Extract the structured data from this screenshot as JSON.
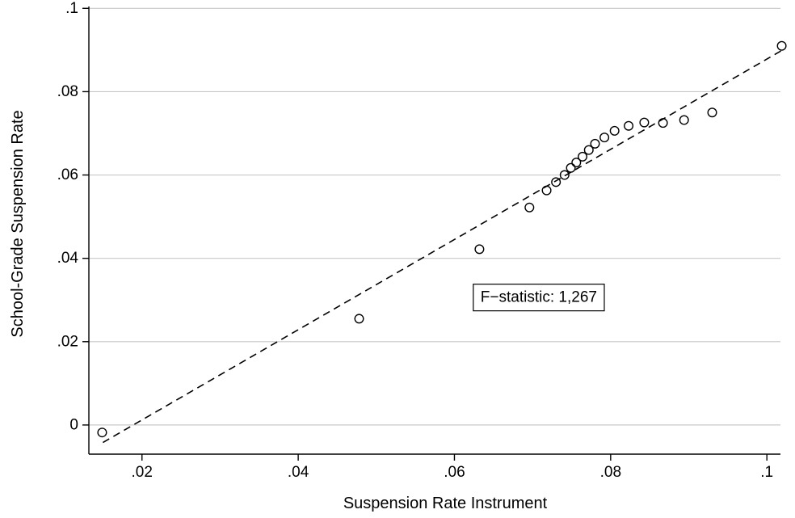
{
  "chart_data": {
    "type": "scatter",
    "xlabel": "Suspension Rate Instrument",
    "ylabel": "School-Grade Suspension Rate",
    "xlim": [
      0.0132,
      0.1036
    ],
    "ylim": [
      -0.007,
      0.102
    ],
    "x_ticks": [
      0.02,
      0.04,
      0.06,
      0.08,
      0.1
    ],
    "x_tick_labels": [
      ".02",
      ".04",
      ".06",
      ".08",
      ".1"
    ],
    "y_ticks": [
      0,
      0.02,
      0.04,
      0.06,
      0.08,
      0.1
    ],
    "y_tick_labels": [
      "0",
      ".02",
      ".04",
      ".06",
      ".08",
      ".1"
    ],
    "grid": "horizontal",
    "legend": "none",
    "points": {
      "x": [
        0.0149,
        0.0478,
        0.0632,
        0.0696,
        0.0718,
        0.073,
        0.0741,
        0.0749,
        0.0756,
        0.0764,
        0.0772,
        0.078,
        0.0792,
        0.0805,
        0.0823,
        0.0843,
        0.0867,
        0.0894,
        0.093,
        0.1019
      ],
      "y": [
        -0.0018,
        0.0255,
        0.0422,
        0.0522,
        0.0563,
        0.0583,
        0.06,
        0.0617,
        0.063,
        0.0644,
        0.066,
        0.0675,
        0.069,
        0.0706,
        0.0718,
        0.0726,
        0.0725,
        0.0732,
        0.075,
        0.091
      ]
    },
    "fit_line": {
      "style": "dashed",
      "x": [
        0.015,
        0.102
      ],
      "y": [
        -0.0042,
        0.09
      ]
    },
    "annotation": {
      "text": "F−statistic: 1,267",
      "x": 0.0708,
      "y": 0.0306
    },
    "colors": {
      "marker": "#000000",
      "fit_line": "#000000",
      "grid": "#c8c8c8",
      "axis": "#000000"
    }
  }
}
